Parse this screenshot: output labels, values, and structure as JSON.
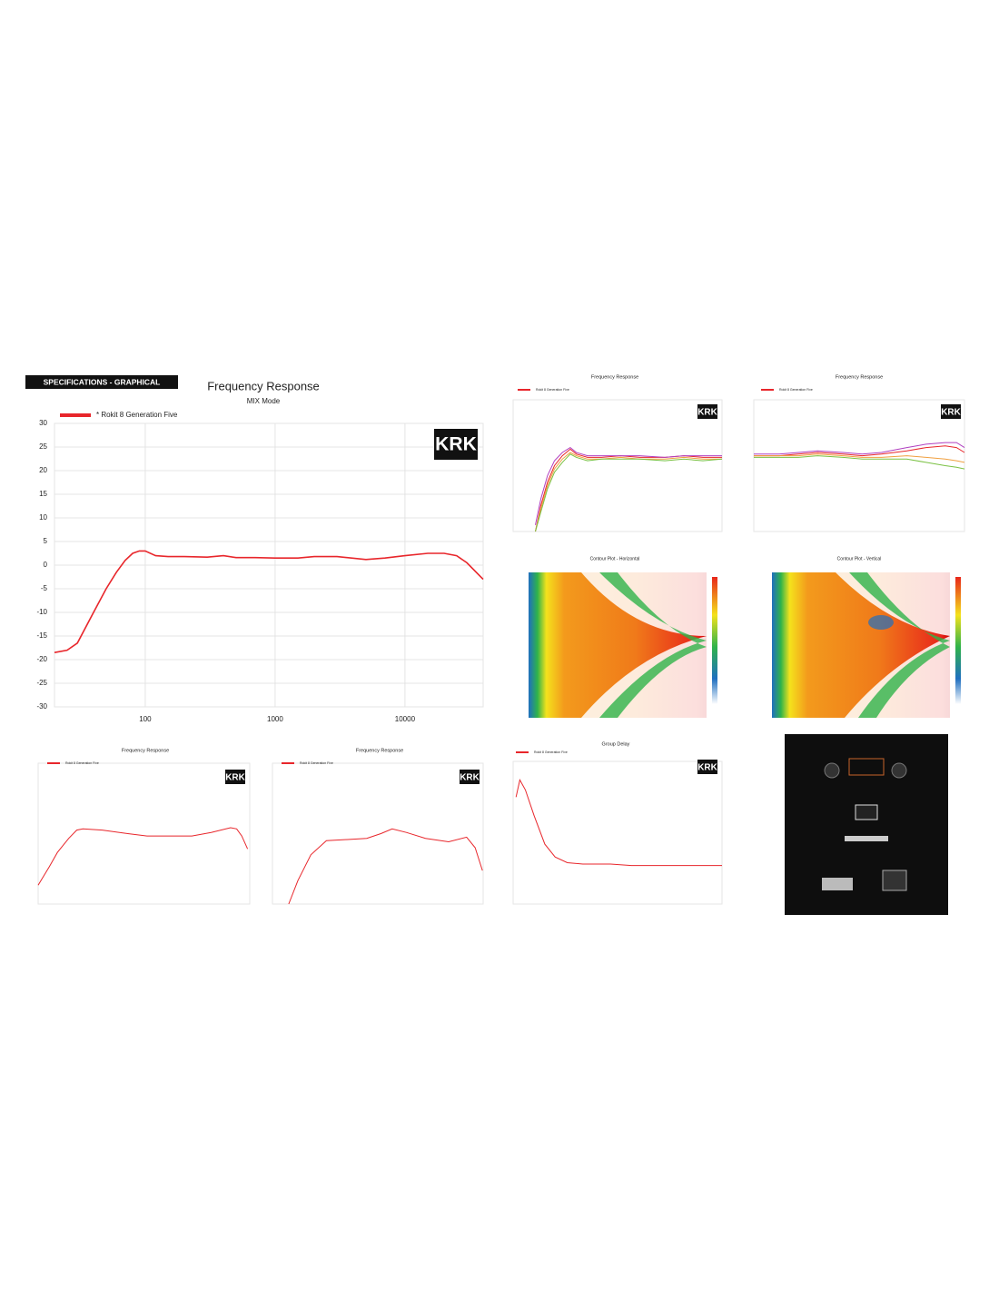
{
  "header": "SPECIFICATIONS - GRAPHICAL",
  "logo": "KRK",
  "panels": [
    {
      "title": "Contour Plot - Horizontal"
    },
    {
      "title": "Contour Plot - Vertical"
    }
  ],
  "chart_data": [
    {
      "type": "line",
      "title": "Frequency Response",
      "subtitle": "MIX Mode",
      "log_x": true,
      "grid": true,
      "x": [
        20,
        25,
        30,
        40,
        50,
        60,
        70,
        80,
        90,
        100,
        120,
        150,
        200,
        300,
        400,
        500,
        700,
        1000,
        1500,
        2000,
        3000,
        5000,
        7000,
        10000,
        15000,
        20000,
        25000,
        30000,
        40000
      ],
      "series": [
        {
          "name": "* Rokit 8 Generation Five",
          "color": "#e8262b",
          "values": [
            -18.5,
            -18,
            -16.5,
            -10,
            -5,
            -1.5,
            1,
            2.5,
            3,
            3,
            2,
            1.8,
            1.8,
            1.7,
            2,
            1.6,
            1.6,
            1.5,
            1.5,
            1.8,
            1.8,
            1.2,
            1.5,
            2,
            2.5,
            2.5,
            2,
            0.5,
            -3
          ]
        }
      ],
      "xlim": [
        20,
        40000
      ],
      "ylim": [
        -30,
        30
      ],
      "xticks": [
        100,
        1000,
        10000
      ],
      "yticks": [
        -30,
        -25,
        -20,
        -15,
        -10,
        -5,
        0,
        5,
        10,
        15,
        20,
        25,
        30
      ]
    },
    {
      "type": "line",
      "title": "Frequency Response",
      "log_x": true,
      "grid": true,
      "x": [
        45,
        55,
        70,
        90,
        120,
        160,
        200,
        300,
        500,
        1000,
        2000,
        5000,
        10000,
        20000,
        40000
      ],
      "series": [
        {
          "name": "Rokit 8 Generation Five",
          "color": "#e8262b",
          "values": [
            -30,
            -22,
            -15,
            -10,
            -7,
            -5,
            -6.5,
            -7.5,
            -7.5,
            -7,
            -7.5,
            -7.5,
            -7,
            -7.5,
            -7.5
          ]
        },
        {
          "color": "#f0a040",
          "values": [
            -30,
            -23,
            -16,
            -11,
            -8,
            -6,
            -7,
            -8,
            -8,
            -7.5,
            -8,
            -8,
            -7.5,
            -8,
            -8
          ]
        },
        {
          "color": "#7ac143",
          "values": [
            -30,
            -24,
            -17,
            -12,
            -9,
            -6.5,
            -7.5,
            -8.5,
            -8,
            -8,
            -8,
            -8.5,
            -8,
            -8.5,
            -8
          ]
        },
        {
          "color": "#b03fc0",
          "values": [
            -28,
            -20,
            -13,
            -8.5,
            -6,
            -4.5,
            -6,
            -7,
            -7,
            -7,
            -7,
            -7.5,
            -7,
            -7,
            -7
          ]
        }
      ],
      "xlim": [
        20,
        40000
      ],
      "ylim": [
        -30,
        10
      ]
    },
    {
      "type": "line",
      "title": "Frequency Response",
      "log_x": true,
      "grid": true,
      "x": [
        20,
        50,
        100,
        200,
        500,
        1000,
        2000,
        5000,
        10000,
        20000,
        30000,
        40000
      ],
      "series": [
        {
          "name": "Rokit 8 Generation Five",
          "color": "#e8262b",
          "values": [
            -7,
            -7,
            -6.5,
            -6,
            -6.5,
            -7,
            -6.5,
            -5.5,
            -4.5,
            -4,
            -4.5,
            -6
          ]
        },
        {
          "color": "#f0a040",
          "values": [
            -7,
            -7,
            -7,
            -6.5,
            -7,
            -7.5,
            -7.5,
            -7,
            -7.5,
            -8,
            -8.5,
            -9
          ]
        },
        {
          "color": "#7ac143",
          "values": [
            -7.5,
            -7.5,
            -7.5,
            -7,
            -7.5,
            -8,
            -8,
            -8,
            -9,
            -10,
            -10.5,
            -11
          ]
        },
        {
          "color": "#b03fc0",
          "values": [
            -6.5,
            -6.5,
            -6,
            -5.5,
            -6,
            -6.5,
            -6,
            -4.5,
            -3.5,
            -3,
            -3,
            -4.5
          ]
        }
      ],
      "xlim": [
        20,
        40000
      ],
      "ylim": [
        -30,
        10
      ]
    },
    {
      "type": "line",
      "title": "Frequency Response",
      "log_x": true,
      "grid": true,
      "x": [
        20,
        30,
        40,
        60,
        80,
        100,
        200,
        500,
        1000,
        2000,
        5000,
        10000,
        20000,
        25000,
        30000,
        37000
      ],
      "series": [
        {
          "name": "Rokit 8 Generation Five",
          "color": "#e8262b",
          "values": [
            -22,
            -14,
            -8,
            -2,
            1.5,
            2,
            1.5,
            0,
            -1,
            -1,
            -1,
            0.5,
            2.5,
            2,
            -1,
            -6.5
          ]
        }
      ],
      "xlim": [
        20,
        40000
      ],
      "ylim": [
        -30,
        30
      ]
    },
    {
      "type": "line",
      "title": "Frequency Response",
      "log_x": true,
      "grid": true,
      "x": [
        36,
        50,
        80,
        140,
        300,
        600,
        1000,
        1500,
        2500,
        5000,
        11500,
        22000,
        30000,
        39000
      ],
      "series": [
        {
          "name": "Rokit 8 Generation Five",
          "color": "#e8262b",
          "values": [
            -30,
            -20,
            -9,
            -3,
            -2.5,
            -2,
            0,
            2,
            0.5,
            -2,
            -3.5,
            -1.5,
            -6,
            -15.7
          ]
        }
      ],
      "xlim": [
        20,
        40000
      ],
      "ylim": [
        -30,
        30
      ]
    },
    {
      "type": "line",
      "title": "Group Delay",
      "log_x": true,
      "grid": true,
      "x": [
        22,
        25,
        30,
        40,
        57,
        80,
        120,
        200,
        500,
        1000,
        5000,
        20000
      ],
      "series": [
        {
          "name": "Rokit 8 Generation Five",
          "color": "#e8262b",
          "values": [
            7.5,
            8.7,
            8,
            6.2,
            4.2,
            3.3,
            2.9,
            2.8,
            2.8,
            2.7,
            2.7,
            2.7
          ]
        }
      ],
      "xlim": [
        20,
        20000
      ],
      "ylim": [
        0,
        10
      ]
    }
  ]
}
